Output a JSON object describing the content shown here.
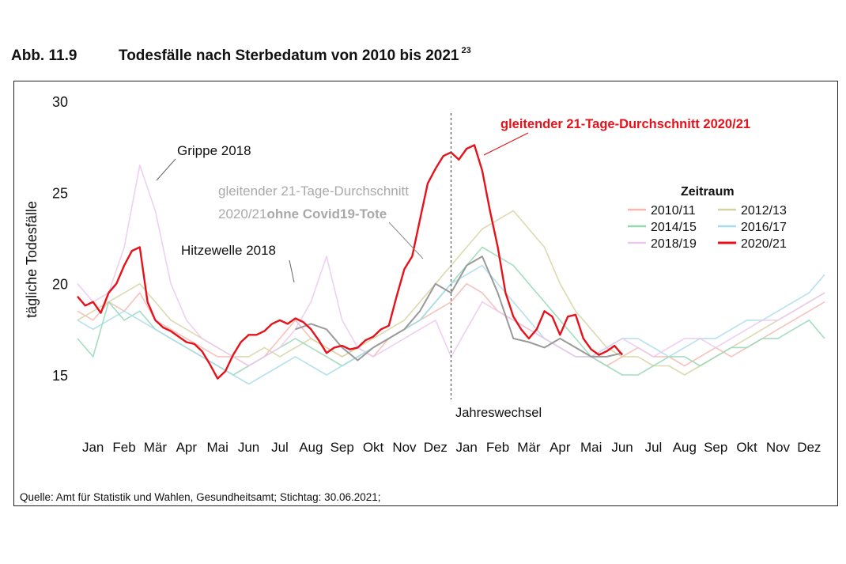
{
  "figure": {
    "number": "Abb. 11.9",
    "title": "Todesfälle nach Sterbedatum von 2010 bis 2021",
    "footnote_ref": "23",
    "source": "Quelle: Amt für Statistik und Wahlen, Gesundheitsamt; Stichtag: 30.06.2021;"
  },
  "chart_data": {
    "type": "line",
    "title": "Todesfälle nach Sterbedatum von 2010 bis 2021",
    "ylabel": "tägliche Todesfälle",
    "xlabel": "",
    "ylim": [
      13,
      30
    ],
    "y_ticks": [
      15,
      20,
      25,
      30
    ],
    "xlim": [
      0,
      24
    ],
    "x_unit": "months since January of the first year (0–24)",
    "x_tick_labels": [
      "Jan",
      "Feb",
      "Mär",
      "Apr",
      "Mai",
      "Jun",
      "Jul",
      "Aug",
      "Sep",
      "Okt",
      "Nov",
      "Dez",
      "Jan",
      "Feb",
      "Mär",
      "Apr",
      "Mai",
      "Jun",
      "Jul",
      "Aug",
      "Sep",
      "Okt",
      "Nov",
      "Dez"
    ],
    "grid": false,
    "legend": {
      "title": "Zeitraum",
      "position": "right",
      "entries": [
        {
          "label": "2010/11",
          "color": "#f4b8b0"
        },
        {
          "label": "2012/13",
          "color": "#d6d3a2"
        },
        {
          "label": "2014/15",
          "color": "#94d8b5"
        },
        {
          "label": "2016/17",
          "color": "#a8dcec"
        },
        {
          "label": "2018/19",
          "color": "#ecc7f0"
        },
        {
          "label": "2020/21",
          "color": "#e8111a"
        }
      ]
    },
    "annotations": [
      {
        "text": "Grippe 2018",
        "x": 1.9,
        "y": 26.5
      },
      {
        "text": "Hitzewelle 2018",
        "x": 6.9,
        "y": 21.8
      },
      {
        "text_line1": "gleitender 21-Tage-Durchschnitt",
        "text_line2_a": "2020/21",
        "text_line2_b": "ohne Covid19-Tote",
        "x": 11.2,
        "y": 19.8
      },
      {
        "text": "gleitender 21-Tage-Durchschnitt 2020/21",
        "x": 12.9,
        "y": 27.3
      },
      {
        "text": "Jahreswechsel",
        "x": 12.0
      }
    ],
    "series": [
      {
        "name": "2010/11",
        "color": "#f4b8b0",
        "x": [
          0,
          0.5,
          1,
          1.5,
          2,
          2.5,
          3,
          3.5,
          4,
          4.5,
          5,
          5.5,
          6,
          6.5,
          7,
          7.5,
          8,
          8.5,
          9,
          9.5,
          10,
          10.5,
          11,
          11.5,
          12,
          12.5,
          13,
          13.5,
          14,
          14.5,
          15,
          15.5,
          16,
          16.5,
          17,
          17.5,
          18,
          18.5,
          19,
          19.5,
          20,
          20.5,
          21,
          21.5,
          22,
          22.5,
          23,
          23.5,
          24
        ],
        "y": [
          18.5,
          18,
          19,
          18.5,
          19.5,
          18,
          17.5,
          17,
          16.5,
          16,
          16,
          15.5,
          16,
          17,
          18,
          17,
          16.5,
          16,
          16.5,
          16,
          17,
          17.5,
          18,
          18.5,
          19,
          20,
          19.5,
          18.5,
          18,
          17.5,
          17,
          16.5,
          16,
          16,
          15.5,
          16,
          16.5,
          16,
          16,
          15.5,
          16,
          16.5,
          16,
          16.5,
          17,
          17.5,
          18,
          18.5,
          19
        ]
      },
      {
        "name": "2012/13",
        "color": "#d6d3a2",
        "x": [
          0,
          0.5,
          1,
          1.5,
          2,
          2.5,
          3,
          3.5,
          4,
          4.5,
          5,
          5.5,
          6,
          6.5,
          7,
          7.5,
          8,
          8.5,
          9,
          9.5,
          10,
          10.5,
          11,
          11.5,
          12,
          12.5,
          13,
          13.5,
          14,
          14.5,
          15,
          15.5,
          16,
          16.5,
          17,
          17.5,
          18,
          18.5,
          19,
          19.5,
          20,
          20.5,
          21,
          21.5,
          22,
          22.5,
          23,
          23.5,
          24
        ],
        "y": [
          18,
          18.5,
          19,
          19.5,
          20,
          19,
          18,
          17.5,
          17,
          16.5,
          16,
          16,
          16.5,
          16,
          16.5,
          17,
          16.5,
          16,
          16.5,
          17,
          17.5,
          18,
          19,
          20,
          21,
          22,
          23,
          23.5,
          24,
          23,
          22,
          20,
          18.5,
          17.5,
          16.5,
          16,
          16,
          15.5,
          15.5,
          15,
          15.5,
          16,
          16.5,
          17,
          17.5,
          18,
          18.5,
          19,
          19.5
        ]
      },
      {
        "name": "2014/15",
        "color": "#94d8b5",
        "x": [
          0,
          0.5,
          1,
          1.5,
          2,
          2.5,
          3,
          3.5,
          4,
          4.5,
          5,
          5.5,
          6,
          6.5,
          7,
          7.5,
          8,
          8.5,
          9,
          9.5,
          10,
          10.5,
          11,
          11.5,
          12,
          12.5,
          13,
          13.5,
          14,
          14.5,
          15,
          15.5,
          16,
          16.5,
          17,
          17.5,
          18,
          18.5,
          19,
          19.5,
          20,
          20.5,
          21,
          21.5,
          22,
          22.5,
          23,
          23.5,
          24
        ],
        "y": [
          17,
          16,
          19,
          18,
          18.5,
          17.5,
          17,
          16.5,
          16,
          15.5,
          15,
          15.5,
          16,
          16.5,
          17,
          16.5,
          16,
          15.5,
          16,
          16.5,
          17,
          17.5,
          18,
          19,
          20,
          21,
          22,
          21.5,
          21,
          20,
          19,
          18,
          17,
          16,
          15.5,
          15,
          15,
          15.5,
          16,
          16,
          15.5,
          16,
          16.5,
          16.5,
          17,
          17,
          17.5,
          18,
          17
        ]
      },
      {
        "name": "2016/17",
        "color": "#a8dcec",
        "x": [
          0,
          0.5,
          1,
          1.5,
          2,
          2.5,
          3,
          3.5,
          4,
          4.5,
          5,
          5.5,
          6,
          6.5,
          7,
          7.5,
          8,
          8.5,
          9,
          9.5,
          10,
          10.5,
          11,
          11.5,
          12,
          12.5,
          13,
          13.5,
          14,
          14.5,
          15,
          15.5,
          16,
          16.5,
          17,
          17.5,
          18,
          18.5,
          19,
          19.5,
          20,
          20.5,
          21,
          21.5,
          22,
          22.5,
          23,
          23.5,
          24
        ],
        "y": [
          18,
          17.5,
          18,
          18.5,
          18,
          17.5,
          17,
          16.5,
          16,
          15.5,
          15,
          14.5,
          15,
          15.5,
          16,
          15.5,
          15,
          15.5,
          16,
          16.5,
          17,
          17.5,
          18,
          19,
          20,
          20.5,
          21,
          20,
          19,
          18,
          17,
          16.5,
          16,
          16,
          16.5,
          17,
          17,
          16.5,
          16,
          16.5,
          17,
          17,
          17.5,
          18,
          18,
          18.5,
          19,
          19.5,
          20.5
        ]
      },
      {
        "name": "2018/19",
        "color": "#ecc7f0",
        "x": [
          0,
          0.5,
          1,
          1.5,
          2,
          2.5,
          3,
          3.5,
          4,
          4.5,
          5,
          5.5,
          6,
          6.5,
          7,
          7.5,
          8,
          8.5,
          9,
          9.5,
          10,
          10.5,
          11,
          11.5,
          12,
          12.5,
          13,
          13.5,
          14,
          14.5,
          15,
          15.5,
          16,
          16.5,
          17,
          17.5,
          18,
          18.5,
          19,
          19.5,
          20,
          20.5,
          21,
          21.5,
          22,
          22.5,
          23,
          23.5,
          24
        ],
        "y": [
          20,
          19,
          19.5,
          22,
          26.5,
          24,
          20,
          18,
          17,
          16.5,
          16,
          15.5,
          16,
          16.5,
          17.5,
          19,
          21.5,
          18,
          16.5,
          16,
          16.5,
          17,
          17.5,
          18,
          16,
          17.5,
          19,
          18.5,
          18,
          17.5,
          17,
          16.5,
          16,
          16,
          16.5,
          17,
          16.5,
          16,
          16.5,
          17,
          17,
          16.5,
          17,
          17.5,
          18,
          18,
          18.5,
          19,
          19.5
        ]
      },
      {
        "name": "2020/21 ohne Covid19-Tote",
        "color": "#9a9a9a",
        "x": [
          7,
          7.5,
          8,
          8.5,
          9,
          9.5,
          10,
          10.5,
          11,
          11.5,
          12,
          12.5,
          13,
          13.5,
          14,
          14.5,
          15,
          15.5,
          16,
          16.5,
          17,
          17.5
        ],
        "y": [
          17.5,
          17.8,
          17.5,
          16.5,
          15.8,
          16.5,
          17,
          17.5,
          18.5,
          20,
          19.5,
          21,
          21.5,
          19.5,
          17,
          16.8,
          16.5,
          17,
          16.5,
          16,
          16,
          16.2
        ]
      },
      {
        "name": "2020/21",
        "color": "#e8111a",
        "x": [
          0,
          0.25,
          0.5,
          0.75,
          1,
          1.25,
          1.5,
          1.75,
          2,
          2.25,
          2.5,
          2.75,
          3,
          3.25,
          3.5,
          3.75,
          4,
          4.25,
          4.5,
          4.75,
          5,
          5.25,
          5.5,
          5.75,
          6,
          6.25,
          6.5,
          6.75,
          7,
          7.25,
          7.5,
          7.75,
          8,
          8.25,
          8.5,
          8.75,
          9,
          9.25,
          9.5,
          9.75,
          10,
          10.25,
          10.5,
          10.75,
          11,
          11.25,
          11.5,
          11.75,
          12,
          12.25,
          12.5,
          12.75,
          13,
          13.25,
          13.5,
          13.75,
          14,
          14.25,
          14.5,
          14.75,
          15,
          15.25,
          15.5,
          15.75,
          16,
          16.25,
          16.5,
          16.75,
          17,
          17.25,
          17.5
        ],
        "y": [
          19.3,
          18.8,
          19,
          18.4,
          19.5,
          20,
          21,
          21.8,
          22,
          19,
          18,
          17.6,
          17.4,
          17.1,
          16.8,
          16.7,
          16.3,
          15.6,
          14.8,
          15.2,
          16.1,
          16.8,
          17.2,
          17.2,
          17.4,
          17.8,
          18,
          17.8,
          18.1,
          17.9,
          17.5,
          16.9,
          16.2,
          16.5,
          16.6,
          16.4,
          16.5,
          16.9,
          17.1,
          17.5,
          17.7,
          19.3,
          20.8,
          21.5,
          23.5,
          25.5,
          26.3,
          27,
          27.2,
          26.8,
          27.4,
          27.6,
          26.2,
          24,
          22,
          19.5,
          18.2,
          17.5,
          17,
          17.5,
          18.5,
          18.2,
          17.2,
          18.2,
          18.3,
          17,
          16.4,
          16.1,
          16.3,
          16.6,
          16.1
        ]
      }
    ]
  }
}
